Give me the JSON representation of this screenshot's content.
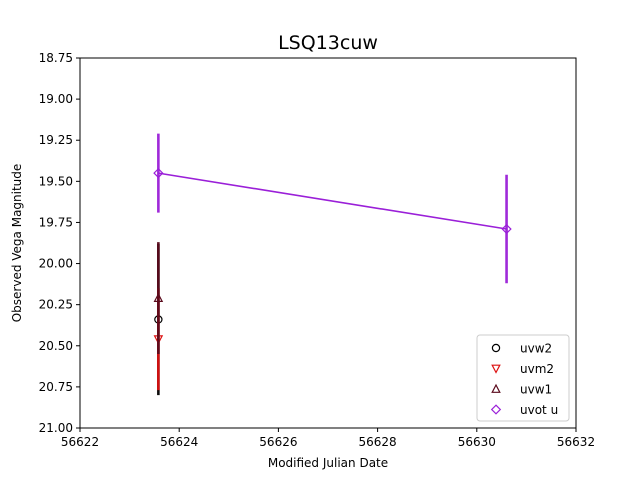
{
  "chart_data": {
    "type": "scatter",
    "title": "LSQ13cuw",
    "xlabel": "Modified Julian Date",
    "ylabel": "Observed Vega Magnitude",
    "xlim": [
      56622,
      56632
    ],
    "ylim": [
      21.0,
      18.75
    ],
    "y_inverted": true,
    "x_ticks": [
      "56622",
      "56624",
      "56626",
      "56628",
      "56630",
      "56632"
    ],
    "y_ticks": [
      "18.75",
      "19.00",
      "19.25",
      "19.50",
      "19.75",
      "20.00",
      "20.25",
      "20.50",
      "20.75",
      "21.00"
    ],
    "legend_position": "lower right",
    "grid": false,
    "series": [
      {
        "name": "uvw2",
        "marker": "circle",
        "color": "#000000",
        "line": false,
        "points": [
          {
            "x": 56623.58,
            "y": 20.34,
            "err": 0.46
          }
        ]
      },
      {
        "name": "uvm2",
        "marker": "triangle-down",
        "color": "#dd1111",
        "line": false,
        "points": [
          {
            "x": 56623.58,
            "y": 20.46,
            "err": 0.31
          }
        ]
      },
      {
        "name": "uvw1",
        "marker": "triangle-up",
        "color": "#5a0a1c",
        "line": false,
        "points": [
          {
            "x": 56623.58,
            "y": 20.21,
            "err": 0.34
          }
        ]
      },
      {
        "name": "uvot u",
        "marker": "diamond",
        "color": "#9a1fd8",
        "line": true,
        "points": [
          {
            "x": 56623.58,
            "y": 19.45,
            "err": 0.24
          },
          {
            "x": 56630.6,
            "y": 19.79,
            "err": 0.33
          }
        ]
      }
    ]
  }
}
